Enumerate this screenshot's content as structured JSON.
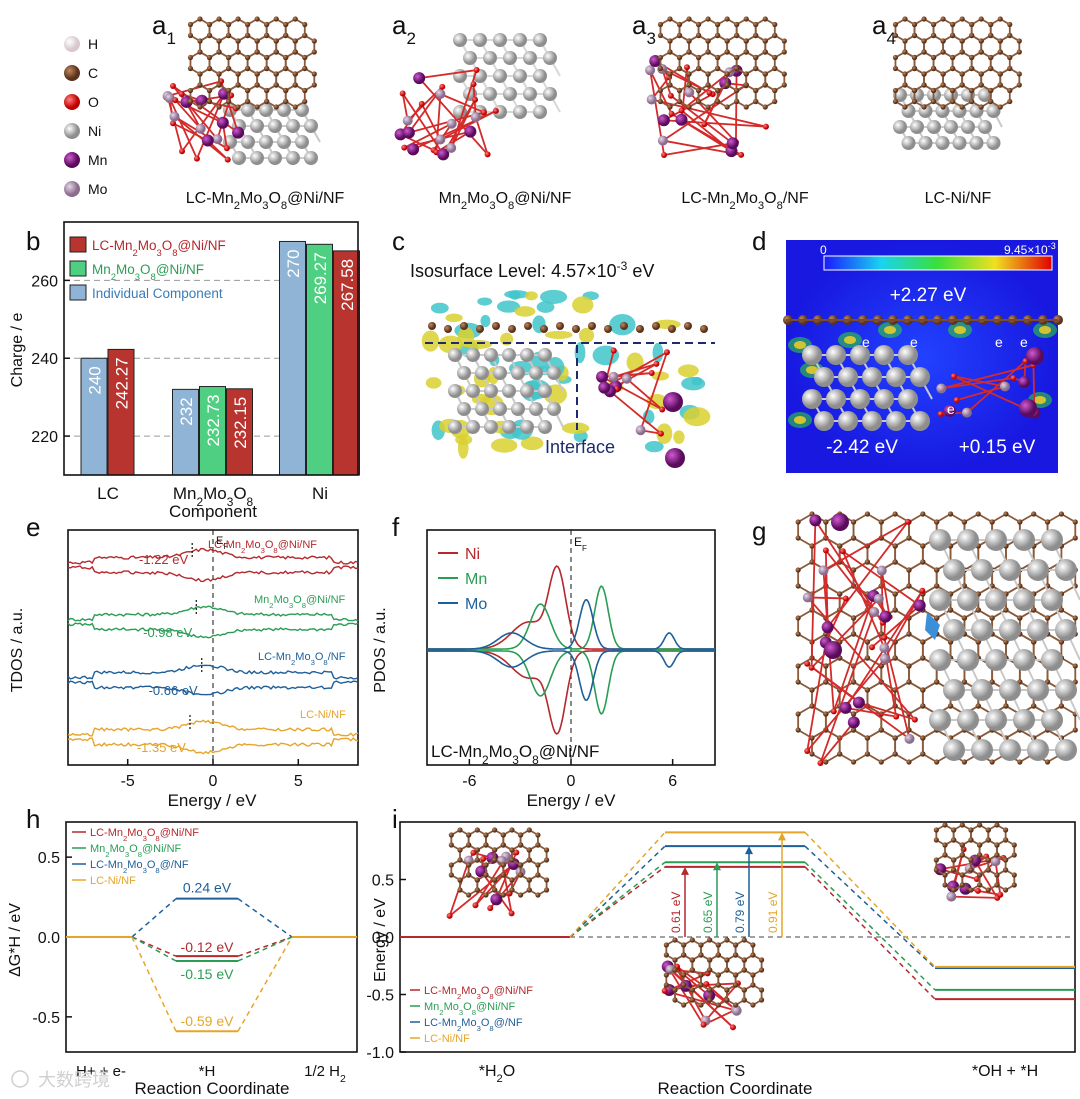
{
  "legend_atoms": {
    "items": [
      {
        "label": "H",
        "color": "#f1dfe2"
      },
      {
        "label": "C",
        "color": "#7a4a2e"
      },
      {
        "label": "O",
        "color": "#e31a1c"
      },
      {
        "label": "Ni",
        "color": "#c6c6c6"
      },
      {
        "label": "Mn",
        "color": "#8a1c8c"
      },
      {
        "label": "Mo",
        "color": "#b9a0bb"
      }
    ]
  },
  "panel_a": {
    "labels": [
      {
        "letter": "a",
        "sub": "1",
        "caption": "LC-Mn2Mo3O8@Ni/NF"
      },
      {
        "letter": "a",
        "sub": "2",
        "caption": "Mn2Mo3O8@Ni/NF"
      },
      {
        "letter": "a",
        "sub": "3",
        "caption": "LC-Mn2Mo3O8/NF"
      },
      {
        "letter": "a",
        "sub": "4",
        "caption": "LC-Ni/NF"
      }
    ]
  },
  "panel_letters": {
    "b": "b",
    "c": "c",
    "d": "d",
    "e": "e",
    "f": "f",
    "g": "g",
    "h": "h",
    "i": "i"
  },
  "panel_c": {
    "text": "Isosurface Level: 4.57×10",
    "exp": "-3",
    "unit": " eV",
    "interface": "Interface"
  },
  "panel_d": {
    "scale_min": "0",
    "scale_max": "9.45×10",
    "scale_exp": "-3",
    "e_top": "+2.27 eV",
    "e_left": "-2.42 eV",
    "e_right": "+0.15 eV",
    "electron": "e"
  },
  "panel_f": {
    "ef": "E",
    "ef_sub": "F",
    "sample": "LC-Mn2Mo3O8@Ni/NF"
  },
  "colors": {
    "red": "#b5282c",
    "green": "#2a9d55",
    "blue": "#1f5f99",
    "orange": "#e6a52a",
    "lightblue": "#8fb4d6",
    "midgreen": "#4fcf81",
    "darkred": "#b8342e"
  },
  "chart_data": [
    {
      "type": "bar",
      "ylabel": "Charge / e",
      "xlabel": "Component",
      "ylim": [
        210,
        275
      ],
      "yticks": [
        220,
        240,
        260
      ],
      "grid": "dashed at 220, 240, 260",
      "legend_position": "top-left",
      "categories": [
        "LC",
        "Mn2Mo3O8",
        "Ni"
      ],
      "series": [
        {
          "name": "LC-Mn2Mo3O8@Ni/NF",
          "values": [
            242.27,
            232.15,
            267.58
          ]
        },
        {
          "name": "Mn2Mo3O8@Ni/NF",
          "values": [
            null,
            232.73,
            269.27
          ]
        },
        {
          "name": "Individual Component",
          "values": [
            240,
            232,
            270
          ]
        }
      ]
    },
    {
      "type": "line",
      "ylabel": "TDOS / a.u.",
      "xlabel": "Energy / eV",
      "xlim": [
        -8.5,
        8.5
      ],
      "xticks": [
        -5,
        0,
        5
      ],
      "ef_label": "E",
      "ef_sub": "F",
      "series": [
        {
          "name": "LC-Mn2Mo3O8@Ni/NF",
          "d_band_center": -1.22,
          "annotation": "-1.22 eV"
        },
        {
          "name": "Mn2Mo3O8@Ni/NF",
          "d_band_center": -0.98,
          "annotation": "-0.98 eV"
        },
        {
          "name": "LC-Mn2Mo3O8/NF",
          "d_band_center": -0.66,
          "annotation": "-0.66 eV"
        },
        {
          "name": "LC-Ni/NF",
          "d_band_center": -1.35,
          "annotation": "-1.35 eV"
        }
      ]
    },
    {
      "type": "line",
      "ylabel": "PDOS / a.u.",
      "xlabel": "Energy / eV",
      "xlim": [
        -8.5,
        8.5
      ],
      "xticks": [
        -6,
        0,
        6
      ],
      "legend_position": "top-left",
      "series": [
        {
          "name": "Ni"
        },
        {
          "name": "Mn"
        },
        {
          "name": "Mo"
        }
      ]
    },
    {
      "type": "line",
      "ylabel": "ΔG*H / eV",
      "xlabel": "Reaction Coordinate",
      "ylim": [
        -0.72,
        0.72
      ],
      "yticks": [
        -0.5,
        0.0,
        0.5
      ],
      "ytick_labels": [
        "-0.5",
        "0.0",
        "0.5"
      ],
      "categories": [
        "H+ + e-",
        "*H",
        "1/2 H2"
      ],
      "legend_position": "top-left",
      "series": [
        {
          "name": "LC-Mn2Mo3O8@Ni/NF",
          "values": [
            0,
            -0.12,
            0
          ],
          "annotation": "-0.12 eV"
        },
        {
          "name": "Mn2Mo3O8@Ni/NF",
          "values": [
            0,
            -0.15,
            0
          ],
          "annotation": "-0.15 eV"
        },
        {
          "name": "LC-Mn2Mo3O8@/NF",
          "values": [
            0,
            0.24,
            0
          ],
          "annotation": "0.24 eV"
        },
        {
          "name": "LC-Ni/NF",
          "values": [
            0,
            -0.59,
            0
          ],
          "annotation": "-0.59 eV"
        }
      ]
    },
    {
      "type": "line",
      "ylabel": "Energy / eV",
      "xlabel": "Reaction Coordinate",
      "ylim": [
        -1.0,
        1.0
      ],
      "yticks": [
        -1.0,
        -0.5,
        0.0,
        0.5
      ],
      "ytick_labels": [
        "-1.0",
        "-0.5",
        "0.0",
        "0.5"
      ],
      "categories": [
        "*H2O",
        "TS",
        "*OH + *H"
      ],
      "legend_position": "bottom-left",
      "series": [
        {
          "name": "LC-Mn2Mo3O8@Ni/NF",
          "values": [
            0,
            0.61,
            -0.54
          ],
          "barrier": "0.61 eV"
        },
        {
          "name": "Mn2Mo3O8@Ni/NF",
          "values": [
            0,
            0.65,
            -0.46
          ],
          "barrier": "0.65 eV"
        },
        {
          "name": "LC-Mn2Mo3O8@/NF",
          "values": [
            0,
            0.79,
            -0.27
          ],
          "barrier": "0.79 eV"
        },
        {
          "name": "LC-Ni/NF",
          "values": [
            0,
            0.91,
            -0.26
          ],
          "barrier": "0.91 eV"
        }
      ]
    }
  ],
  "watermark": "大数跨境"
}
